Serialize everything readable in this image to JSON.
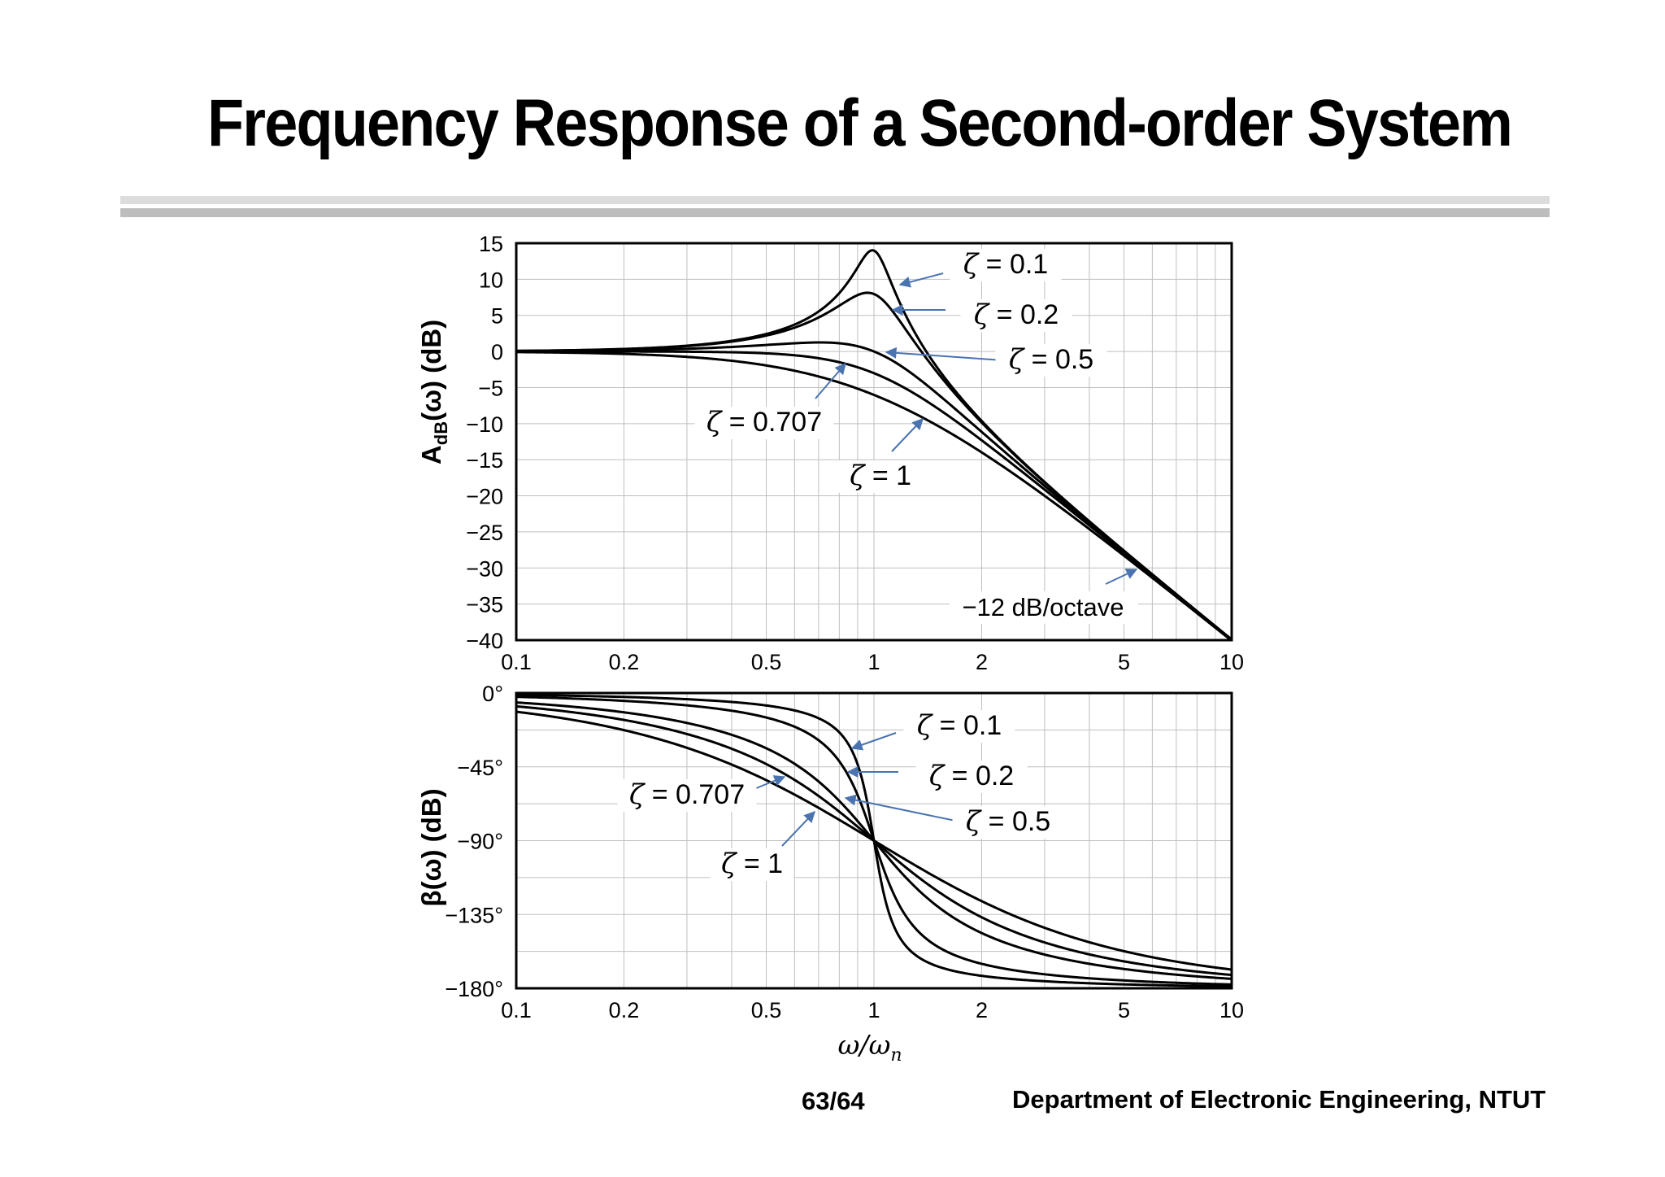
{
  "slide": {
    "title": "Frequency Response of a Second-order System",
    "page_number": "63/64",
    "department": "Department of Electronic Engineering, NTUT"
  },
  "colors": {
    "curve": "#000000",
    "grid": "#bfbfbf",
    "annotation_arrow": "#4a73b0"
  },
  "chart_data": [
    {
      "type": "line",
      "ylabel_main": "A",
      "ylabel_sub": "dB",
      "ylabel_tail": "(ω)  (dB)",
      "xscale": "log",
      "xlim": [
        0.1,
        10
      ],
      "ylim": [
        -40,
        15
      ],
      "x_ticks": [
        "0.1",
        "0.2",
        "0.5",
        "1",
        "2",
        "5",
        "10"
      ],
      "y_ticks": [
        "15",
        "10",
        "5",
        "0",
        "−5",
        "−10",
        "−15",
        "−20",
        "−25",
        "−30",
        "−35",
        "−40"
      ],
      "grid": true,
      "series": [
        {
          "name": "ζ = 0.1",
          "zeta": 0.1,
          "x": [
            0.1,
            0.2,
            0.5,
            0.7,
            0.9,
            1.0,
            1.2,
            1.5,
            2,
            5,
            10
          ],
          "values": [
            0.1,
            0.3,
            2.4,
            5.6,
            11.4,
            14.0,
            5.6,
            -2.1,
            -9.6,
            -27.6,
            -39.9
          ]
        },
        {
          "name": "ζ = 0.2",
          "zeta": 0.2,
          "x": [
            0.1,
            0.2,
            0.5,
            0.7,
            0.9,
            1.0,
            1.2,
            1.5,
            2,
            5,
            10
          ],
          "values": [
            0.1,
            0.3,
            2.2,
            4.6,
            8.2,
            8.0,
            4.5,
            -2.4,
            -9.7,
            -27.6,
            -39.9
          ]
        },
        {
          "name": "ζ = 0.5",
          "zeta": 0.5,
          "x": [
            0.1,
            0.2,
            0.5,
            0.7,
            1.0,
            1.5,
            2,
            5,
            10
          ],
          "values": [
            0.0,
            0.1,
            1.0,
            1.2,
            0.0,
            -3.9,
            -7.8,
            -26.5,
            -39.7
          ]
        },
        {
          "name": "ζ = 0.707",
          "zeta": 0.707,
          "x": [
            0.1,
            0.2,
            0.5,
            0.7,
            1.0,
            1.5,
            2,
            5,
            10
          ],
          "values": [
            0.0,
            0.0,
            -0.3,
            -0.9,
            -3.0,
            -7.4,
            -12.3,
            -28.0,
            -40.0
          ]
        },
        {
          "name": "ζ = 1",
          "zeta": 1,
          "x": [
            0.1,
            0.2,
            0.5,
            0.7,
            1.0,
            1.5,
            2,
            5,
            10
          ],
          "values": [
            -0.1,
            -0.3,
            -1.9,
            -3.5,
            -6.0,
            -10.2,
            -14.0,
            -28.3,
            -40.1
          ]
        }
      ],
      "annotations": [
        "ζ = 0.1",
        "ζ = 0.2",
        "ζ = 0.5",
        "ζ = 0.707",
        "ζ = 1",
        "−12 dB/octave"
      ]
    },
    {
      "type": "line",
      "ylabel": "β(ω)  (dB)",
      "xlabel_main": "ω/ω",
      "xlabel_sub": "n",
      "xscale": "log",
      "xlim": [
        0.1,
        10
      ],
      "ylim": [
        -180,
        0
      ],
      "x_ticks": [
        "0.1",
        "0.2",
        "0.5",
        "1",
        "2",
        "5",
        "10"
      ],
      "y_ticks": [
        "0°",
        "−45°",
        "−90°",
        "−135°",
        "−180°"
      ],
      "grid": true,
      "series": [
        {
          "name": "ζ = 0.1",
          "zeta": 0.1,
          "x": [
            0.1,
            0.2,
            0.5,
            0.7,
            0.9,
            1.0,
            1.2,
            1.5,
            2,
            5,
            10
          ],
          "values": [
            -1.2,
            -2.4,
            -7.6,
            -15.4,
            -43.5,
            -90,
            -132.1,
            -166.2,
            -172.4,
            -177.6,
            -178.8
          ]
        },
        {
          "name": "ζ = 0.2",
          "zeta": 0.2,
          "x": [
            0.1,
            0.2,
            0.5,
            0.7,
            0.9,
            1.0,
            1.2,
            1.5,
            2,
            5,
            10
          ],
          "values": [
            -2.3,
            -4.8,
            -14.9,
            -28.8,
            -62.4,
            -90,
            -118.4,
            -145.5,
            -165.1,
            -175.2,
            -177.7
          ]
        },
        {
          "name": "ζ = 0.5",
          "zeta": 0.5,
          "x": [
            0.1,
            0.2,
            0.5,
            0.7,
            1.0,
            1.5,
            2,
            5,
            10
          ],
          "values": [
            -5.8,
            -11.8,
            -33.7,
            -53.9,
            -90,
            -129.8,
            -146.3,
            -168.1,
            -174.2
          ]
        },
        {
          "name": "ζ = 0.707",
          "zeta": 0.707,
          "x": [
            0.1,
            0.2,
            0.5,
            0.7,
            1.0,
            1.5,
            2,
            5,
            10
          ],
          "values": [
            -8.1,
            -16.4,
            -43.3,
            -62.3,
            -90,
            -120.1,
            -137.2,
            -163.6,
            -171.9
          ]
        },
        {
          "name": "ζ = 1",
          "zeta": 1,
          "x": [
            0.1,
            0.2,
            0.5,
            0.7,
            1.0,
            1.5,
            2,
            5,
            10
          ],
          "values": [
            -11.4,
            -22.6,
            -53.1,
            -69.9,
            -90,
            -112.6,
            -126.9,
            -157.4,
            -168.6
          ]
        }
      ],
      "annotations": [
        "ζ = 0.1",
        "ζ = 0.2",
        "ζ = 0.5",
        "ζ = 0.707",
        "ζ = 1"
      ]
    }
  ]
}
